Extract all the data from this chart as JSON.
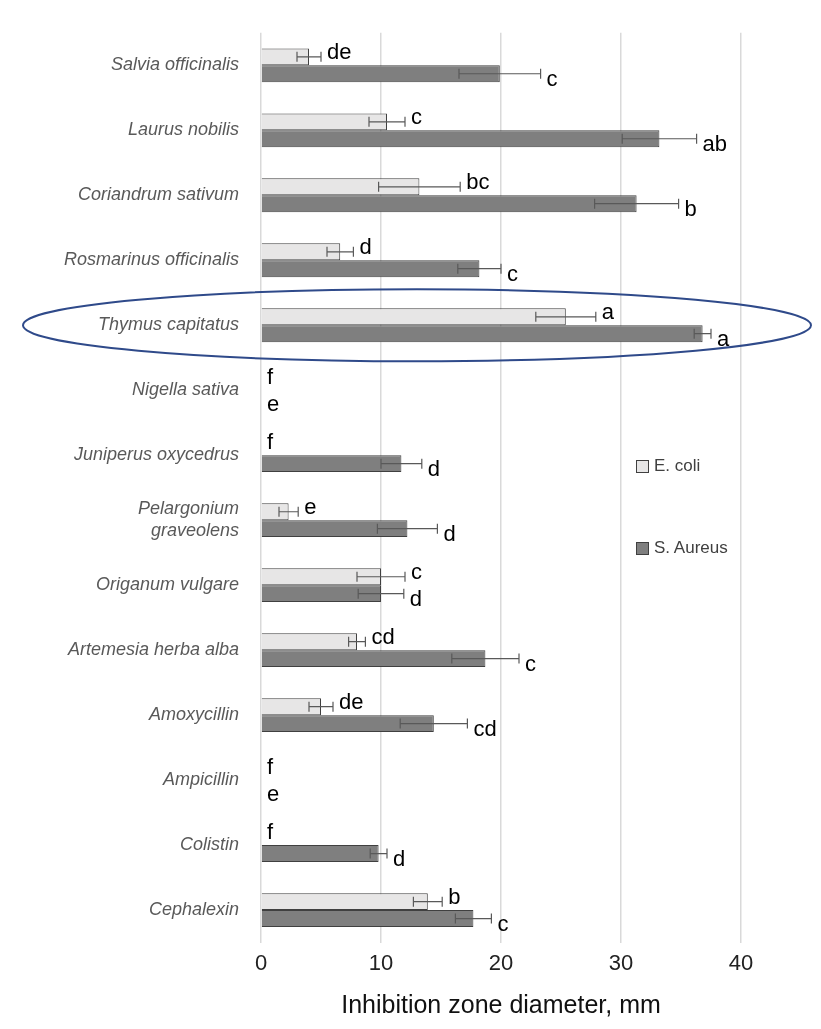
{
  "chart_data": {
    "type": "bar",
    "orientation": "horizontal",
    "xlabel": "Inhibition zone diameter, mm",
    "categories": [
      "Salvia officinalis",
      "Laurus nobilis",
      "Coriandrum sativum",
      "Rosmarinus officinalis",
      "Thymus capitatus",
      "Nigella sativa",
      "Juniperus oxycedrus",
      "Pelargonium\ngraveolens",
      "Origanum vulgare",
      "Artemesia herba alba",
      "Amoxycillin",
      "Ampicillin",
      "Colistin",
      "Cephalexin"
    ],
    "series": [
      {
        "name": "E. coli",
        "color": "#e7e6e6",
        "values": [
          4,
          10.5,
          13.2,
          6.6,
          25.4,
          0,
          0,
          2.3,
          10,
          8,
          5,
          0,
          0,
          13.9
        ],
        "errors": [
          1,
          1.5,
          3.4,
          1.1,
          2.5,
          null,
          null,
          0.8,
          2,
          0.7,
          1,
          null,
          null,
          1.2
        ],
        "value_labels": [
          "de",
          "c",
          "bc",
          "d",
          "a",
          "f",
          "f",
          "e",
          "c",
          "cd",
          "de",
          "f",
          "f",
          "b"
        ]
      },
      {
        "name": "S. Aureus",
        "color": "#7f7f7f",
        "values": [
          19.9,
          33.2,
          31.3,
          18.2,
          36.8,
          0,
          11.7,
          12.2,
          10,
          18.7,
          14.4,
          0,
          9.8,
          17.7
        ],
        "errors": [
          3.4,
          3.1,
          3.5,
          1.8,
          0.7,
          null,
          1.7,
          2.5,
          1.9,
          2.8,
          2.8,
          null,
          0.7,
          1.5
        ],
        "value_labels": [
          "c",
          "ab",
          "b",
          "c",
          "a",
          "e",
          "d",
          "d",
          "d",
          "c",
          "cd",
          "e",
          "d",
          "c"
        ]
      }
    ],
    "xlim": [
      0,
      40
    ],
    "xticks": [
      0,
      10,
      20,
      30,
      40
    ],
    "grid": "x",
    "legend": "right"
  }
}
